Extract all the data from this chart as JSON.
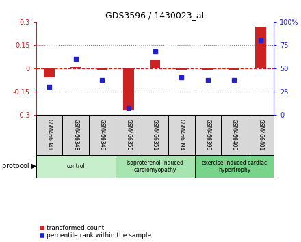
{
  "title": "GDS3596 / 1430023_at",
  "samples": [
    "GSM466341",
    "GSM466348",
    "GSM466349",
    "GSM466350",
    "GSM466351",
    "GSM466394",
    "GSM466399",
    "GSM466400",
    "GSM466401"
  ],
  "transformed_counts": [
    -0.06,
    0.01,
    -0.01,
    -0.27,
    0.05,
    -0.01,
    -0.01,
    -0.01,
    0.27
  ],
  "percentile_ranks": [
    30,
    60,
    37,
    7,
    68,
    40,
    37,
    37,
    80
  ],
  "ylim_left": [
    -0.3,
    0.3
  ],
  "ylim_right": [
    0,
    100
  ],
  "yticks_left": [
    -0.3,
    -0.15,
    0,
    0.15,
    0.3
  ],
  "yticks_right": [
    0,
    25,
    50,
    75,
    100
  ],
  "groups": [
    {
      "label": "control",
      "start": 0,
      "end": 3,
      "color": "#c8efcc"
    },
    {
      "label": "isoproterenol-induced\ncardiomyopathy",
      "start": 3,
      "end": 6,
      "color": "#a8e4b0"
    },
    {
      "label": "exercise-induced cardiac\nhypertrophy",
      "start": 6,
      "end": 9,
      "color": "#78d48a"
    }
  ],
  "bar_color": "#cc2222",
  "dot_color": "#2222cc",
  "zero_line_color": "#cc2222",
  "dot_color_str": "dotted",
  "bg_color": "#d8d8d8",
  "plot_bg": "#ffffff",
  "legend_red_label": "transformed count",
  "legend_blue_label": "percentile rank within the sample",
  "protocol_label": "protocol"
}
